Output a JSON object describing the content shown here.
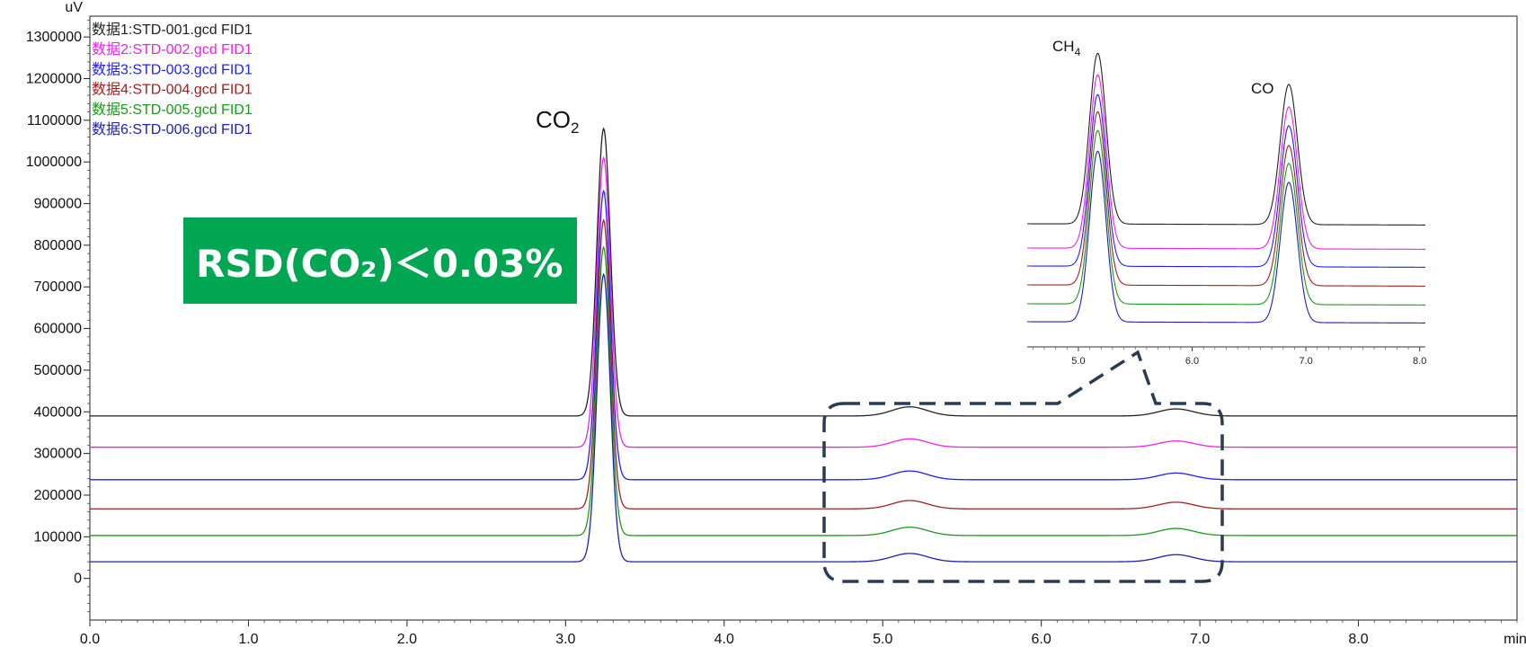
{
  "chart_data": {
    "type": "line",
    "title": "",
    "xlabel": "min",
    "ylabel": "uV",
    "xlim": [
      0.0,
      9.0
    ],
    "ylim": [
      -100000,
      1350000
    ],
    "x_ticks": [
      "0.0",
      "1.0",
      "2.0",
      "3.0",
      "4.0",
      "5.0",
      "6.0",
      "7.0",
      "8.0"
    ],
    "y_ticks": [
      "0",
      "100000",
      "200000",
      "300000",
      "400000",
      "500000",
      "600000",
      "700000",
      "800000",
      "900000",
      "1000000",
      "1100000",
      "1200000",
      "1300000"
    ],
    "legend_position": "top-left",
    "series": [
      {
        "name": "数据1:STD-001.gcd FID1",
        "color": "#222222",
        "baseline": 390000,
        "peaks": [
          {
            "rt": 3.24,
            "height": 1080000
          },
          {
            "rt": 5.17,
            "height": 412000
          },
          {
            "rt": 6.85,
            "height": 407000
          }
        ]
      },
      {
        "name": "数据2:STD-002.gcd FID1",
        "color": "#ee22ee",
        "baseline": 315000,
        "peaks": [
          {
            "rt": 3.24,
            "height": 1010000
          },
          {
            "rt": 5.17,
            "height": 335000
          },
          {
            "rt": 6.85,
            "height": 330000
          }
        ]
      },
      {
        "name": "数据3:STD-003.gcd FID1",
        "color": "#1f1fff",
        "baseline": 237000,
        "peaks": [
          {
            "rt": 3.24,
            "height": 930000
          },
          {
            "rt": 5.17,
            "height": 258000
          },
          {
            "rt": 6.85,
            "height": 253000
          }
        ]
      },
      {
        "name": "数据4:STD-004.gcd FID1",
        "color": "#a02020",
        "baseline": 167000,
        "peaks": [
          {
            "rt": 3.24,
            "height": 860000
          },
          {
            "rt": 5.17,
            "height": 187000
          },
          {
            "rt": 6.85,
            "height": 183000
          }
        ]
      },
      {
        "name": "数据5:STD-005.gcd FID1",
        "color": "#1a9a1a",
        "baseline": 103000,
        "peaks": [
          {
            "rt": 3.24,
            "height": 795000
          },
          {
            "rt": 5.17,
            "height": 123000
          },
          {
            "rt": 6.85,
            "height": 120000
          }
        ]
      },
      {
        "name": "数据6:STD-006.gcd FID1",
        "color": "#2020b0",
        "baseline": 40000,
        "peaks": [
          {
            "rt": 3.24,
            "height": 730000
          },
          {
            "rt": 5.17,
            "height": 60000
          },
          {
            "rt": 6.85,
            "height": 57000
          }
        ]
      }
    ],
    "annotations": {
      "co2_label": "CO",
      "co2_sub": "2",
      "ch4_label": "CH",
      "ch4_sub": "4",
      "co_label": "CO",
      "rsd_text": "RSD(CO₂)＜0.03%"
    },
    "inset": {
      "xlim": [
        4.55,
        8.05
      ],
      "x_ticks": [
        "5.0",
        "6.0",
        "7.0",
        "8.0"
      ]
    }
  }
}
